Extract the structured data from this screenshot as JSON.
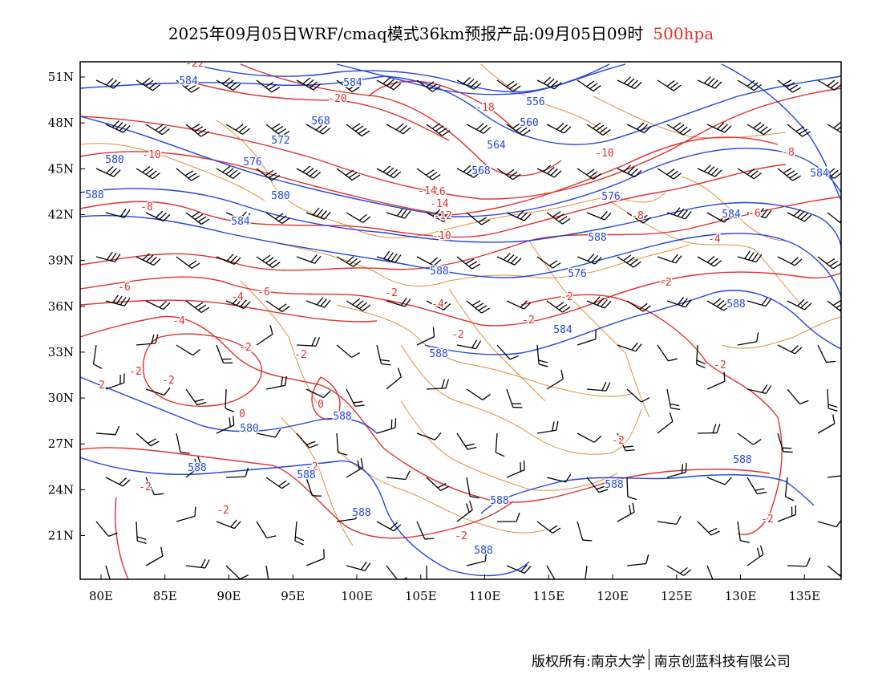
{
  "title": {
    "main": "2025年09月05日WRF/cmaq模式36km预报产品:09月05日09时",
    "level": "500hpa"
  },
  "map": {
    "region": "China and surrounding area",
    "lon_ticks": [
      "80E",
      "85E",
      "90E",
      "95E",
      "100E",
      "105E",
      "110E",
      "115E",
      "120E",
      "125E",
      "130E",
      "135E"
    ],
    "lat_ticks": [
      "51N",
      "48N",
      "45N",
      "42N",
      "39N",
      "36N",
      "33N",
      "30N",
      "27N",
      "24N",
      "21N"
    ],
    "lon_range": [
      78,
      138
    ],
    "lat_range": [
      18.2,
      52
    ],
    "colors": {
      "height": "#2244dd",
      "temperature": "#e03030",
      "boundary": "#e0903c",
      "wind": "#000000"
    }
  },
  "height_labels": [
    "584",
    "584",
    "568",
    "572",
    "576",
    "580",
    "580",
    "584",
    "588",
    "576",
    "568",
    "560",
    "556",
    "564",
    "576",
    "588",
    "584",
    "584",
    "588",
    "588",
    "588",
    "580",
    "588",
    "588",
    "588",
    "588",
    "588",
    "588",
    "588",
    "588",
    "584"
  ],
  "temp_labels": [
    "-22",
    "-20",
    "-18",
    "-16",
    "-14",
    "-12",
    "-10",
    "-10",
    "-8",
    "-8",
    "-6",
    "-4",
    "-4",
    "-2",
    "-2",
    "-2",
    "-2",
    "0",
    "0",
    "2",
    "-2",
    "-10",
    "-8",
    "-6",
    "-4",
    "-2",
    "-2",
    "-2",
    "-2",
    "-2",
    "-2",
    "-2",
    "-2",
    "-6",
    "-4",
    "-14",
    "-2",
    "-2",
    "-2"
  ],
  "footer": {
    "left": "版权所有:南京大学",
    "right": "南京创蓝科技有限公司"
  }
}
